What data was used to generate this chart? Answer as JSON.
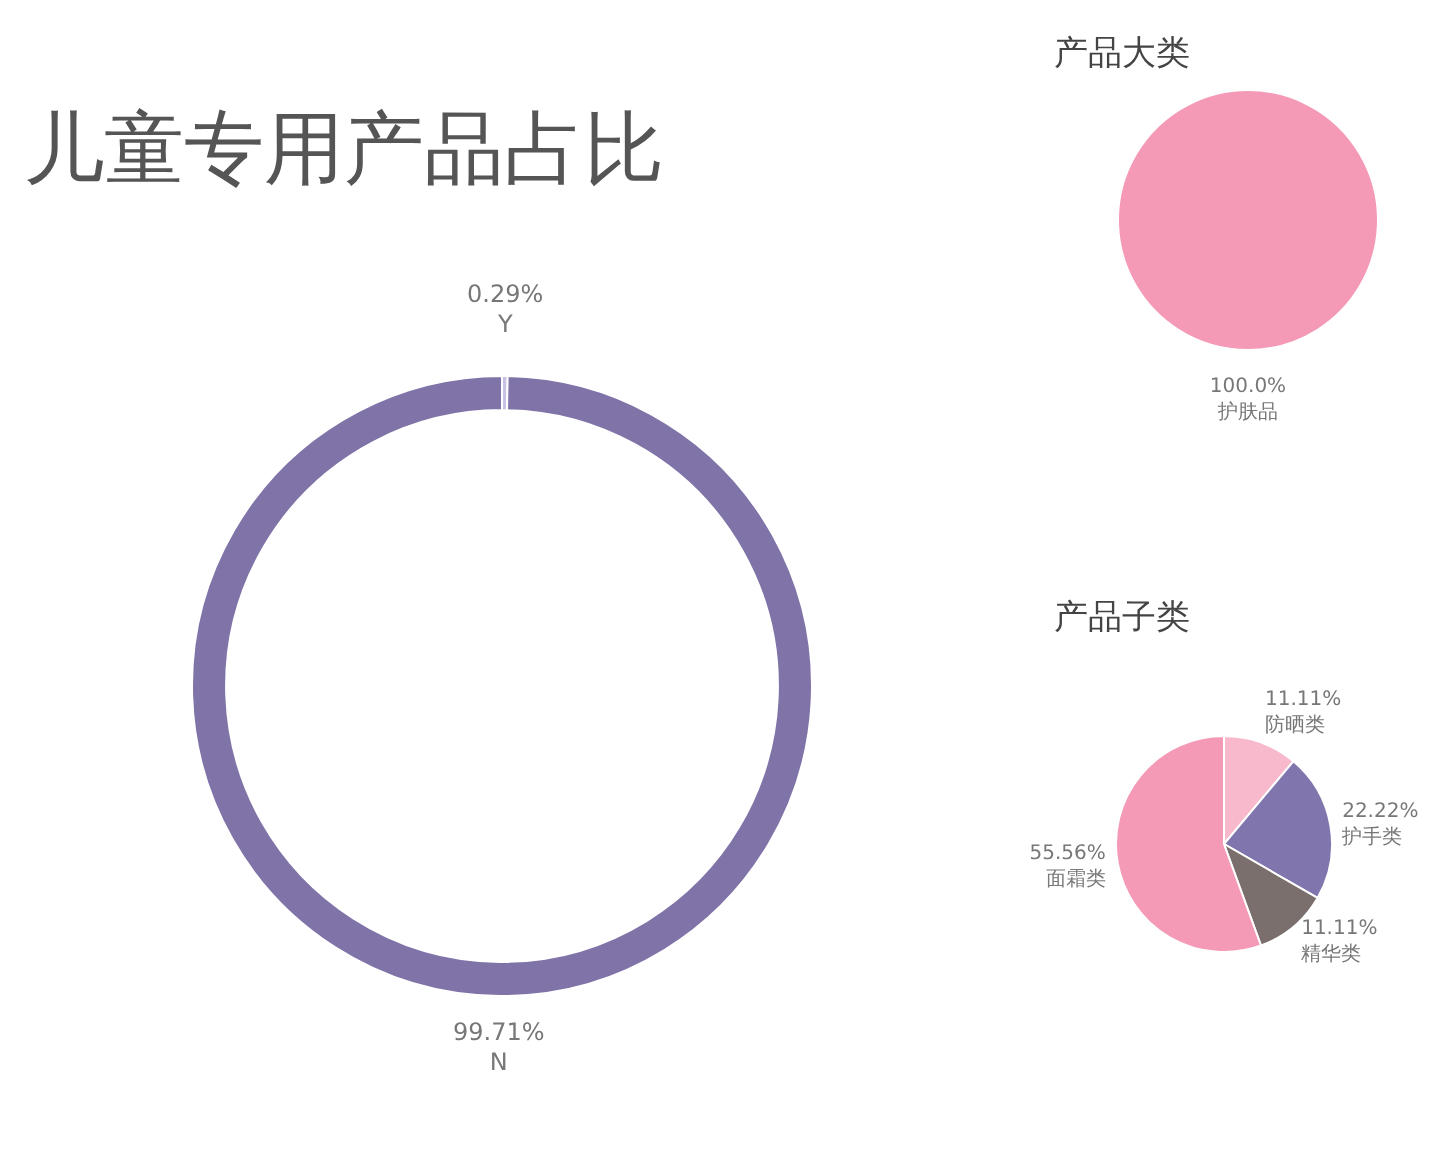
{
  "chart_data": [
    {
      "type": "donut",
      "title": "儿童专用产品占比",
      "categories": [
        "Y",
        "N"
      ],
      "values": [
        0.29,
        99.71
      ],
      "colors": [
        "#c9c1e3",
        "#7f73a8"
      ],
      "value_labels": [
        "0.29%",
        "99.71%"
      ]
    },
    {
      "type": "pie",
      "title": "产品大类",
      "categories": [
        "护肤品"
      ],
      "values": [
        100
      ],
      "colors": [
        "#f49ab6"
      ],
      "value_labels": [
        "100.0%"
      ]
    },
    {
      "type": "pie",
      "title": "产品子类",
      "categories": [
        "防晒类",
        "护手类",
        "精华类",
        "面霜类"
      ],
      "values": [
        11.11,
        22.22,
        11.11,
        55.56
      ],
      "colors": [
        "#f8b9cd",
        "#8175ad",
        "#7a6f6c",
        "#f49ab6"
      ],
      "value_labels": [
        "11.11%",
        "22.22%",
        "11.11%",
        "55.56%"
      ]
    }
  ]
}
